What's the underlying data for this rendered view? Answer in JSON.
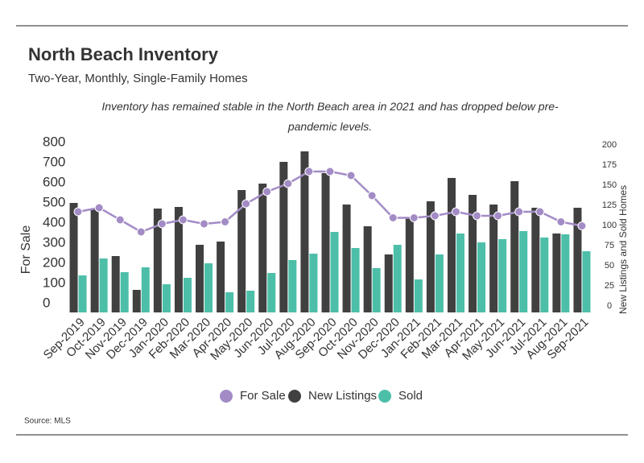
{
  "chart_data": {
    "type": "bar_line",
    "title": "North Beach Inventory",
    "subtitle": "Two-Year, Monthly, Single-Family Homes",
    "annotation": "Inventory has remained stable in the North Beach area in 2021 and has dropped below pre-pandemic levels.",
    "source": "Source:  MLS",
    "ylabel": "For Sale",
    "y2label": "New Listings and Sold Homes",
    "categories": [
      "Sep-2019",
      "Oct-2019",
      "Nov-2019",
      "Dec-2019",
      "Jan-2020",
      "Feb-2020",
      "Mar-2020",
      "Apr-2020",
      "May-2020",
      "Jun-2020",
      "Jul-2020",
      "Aug-2020",
      "Sep-2020",
      "Oct-2020",
      "Nov-2020",
      "Dec-2020",
      "Jan-2021",
      "Feb-2021",
      "Mar-2021",
      "Apr-2021",
      "May-2021",
      "Jun-2021",
      "Jul-2021",
      "Aug-2021",
      "Sep-2021"
    ],
    "series": [
      {
        "name": "For Sale",
        "type": "line",
        "axis": "y",
        "color": "#a38cc6",
        "values": [
          500,
          520,
          460,
          400,
          440,
          460,
          440,
          450,
          540,
          600,
          640,
          700,
          700,
          680,
          580,
          470,
          470,
          480,
          500,
          480,
          480,
          500,
          500,
          450,
          430
        ]
      },
      {
        "name": "New Listings",
        "type": "bar",
        "axis": "y2",
        "color": "#404040",
        "values": [
          136,
          128,
          70,
          28,
          129,
          131,
          84,
          88,
          152,
          160,
          187,
          200,
          173,
          134,
          107,
          72,
          118,
          138,
          167,
          146,
          134,
          163,
          130,
          98,
          130
        ]
      },
      {
        "name": "Sold",
        "type": "bar",
        "axis": "y2",
        "color": "#4dbfa9",
        "values": [
          46,
          67,
          50,
          56,
          35,
          43,
          61,
          25,
          27,
          49,
          65,
          73,
          100,
          80,
          55,
          84,
          41,
          72,
          98,
          87,
          91,
          101,
          93,
          97,
          76
        ]
      }
    ],
    "ylim": [
      0,
      800
    ],
    "yticks": [
      0,
      100,
      200,
      300,
      400,
      500,
      600,
      700,
      800
    ],
    "y2lim": [
      0,
      200
    ],
    "y2ticks": [
      0,
      25,
      50,
      75,
      100,
      125,
      150,
      175,
      200
    ],
    "grid": false,
    "legend": "bottom"
  }
}
